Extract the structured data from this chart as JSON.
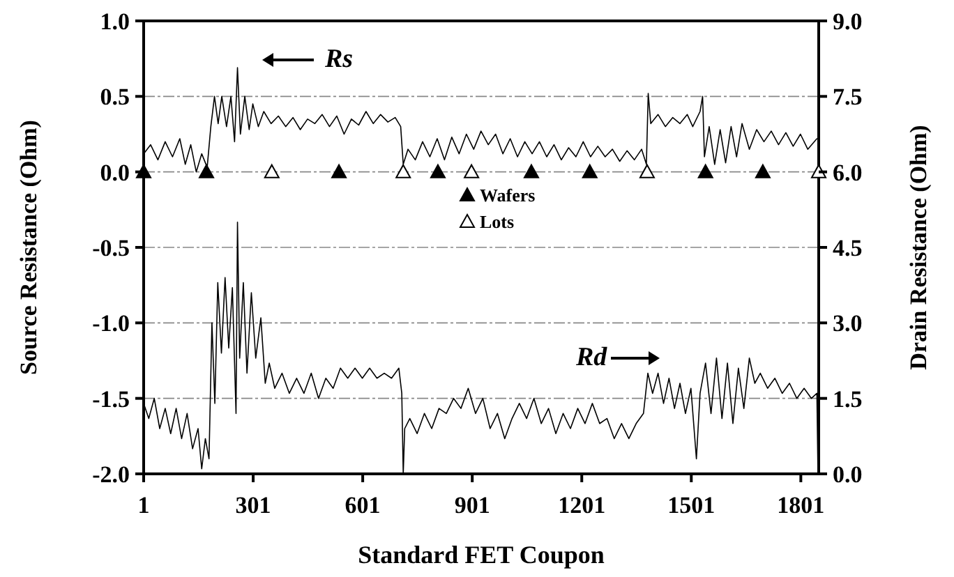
{
  "chart_data": {
    "type": "line",
    "xlabel": "Standard FET Coupon",
    "ylabel": "Source Resistance (Ohm)",
    "y2label": "Drain Resistance (Ohm)",
    "xlim": [
      1,
      1850
    ],
    "xticks": [
      1,
      301,
      601,
      901,
      1201,
      1501,
      1801
    ],
    "ylim": [
      -2,
      1
    ],
    "yticks": [
      {
        "value": -2,
        "label": "-2.0"
      },
      {
        "value": -1.5,
        "label": "-1.5"
      },
      {
        "value": -1,
        "label": "-1.0"
      },
      {
        "value": -0.5,
        "label": "-0.5"
      },
      {
        "value": 0,
        "label": "0.0"
      },
      {
        "value": 0.5,
        "label": "0.5"
      },
      {
        "value": 1,
        "label": "1.0"
      }
    ],
    "y2lim": [
      0,
      9
    ],
    "y2ticks": [
      {
        "value": 0,
        "label": "0.0"
      },
      {
        "value": 1.5,
        "label": "1.5"
      },
      {
        "value": 3,
        "label": "3.0"
      },
      {
        "value": 4.5,
        "label": "4.5"
      },
      {
        "value": 6,
        "label": "6.0"
      },
      {
        "value": 7.5,
        "label": "7.5"
      },
      {
        "value": 9,
        "label": "9.0"
      }
    ],
    "grid": "y",
    "legend": "center",
    "line_style": "solid",
    "series": [
      {
        "name": "Rs",
        "color": "#000000",
        "marker": "none",
        "x": [
          1,
          20,
          40,
          60,
          80,
          100,
          115,
          130,
          145,
          160,
          175,
          185,
          195,
          205,
          215,
          228,
          240,
          250,
          258,
          266,
          278,
          290,
          300,
          315,
          330,
          350,
          370,
          390,
          410,
          430,
          450,
          470,
          490,
          510,
          530,
          550,
          570,
          590,
          610,
          630,
          650,
          670,
          690,
          705,
          712,
          725,
          745,
          765,
          785,
          805,
          825,
          845,
          865,
          885,
          905,
          925,
          945,
          965,
          985,
          1005,
          1025,
          1045,
          1065,
          1085,
          1105,
          1125,
          1145,
          1165,
          1185,
          1205,
          1225,
          1245,
          1265,
          1285,
          1305,
          1325,
          1345,
          1365,
          1378,
          1383,
          1390,
          1410,
          1430,
          1450,
          1470,
          1490,
          1505,
          1525,
          1532,
          1537,
          1550,
          1565,
          1580,
          1595,
          1610,
          1625,
          1640,
          1660,
          1680,
          1700,
          1720,
          1740,
          1760,
          1780,
          1800,
          1820,
          1845
        ],
        "values": [
          0.12,
          0.18,
          0.08,
          0.2,
          0.1,
          0.22,
          0.05,
          0.18,
          0.0,
          0.12,
          0.03,
          0.3,
          0.5,
          0.32,
          0.5,
          0.3,
          0.5,
          0.2,
          0.69,
          0.25,
          0.5,
          0.28,
          0.45,
          0.3,
          0.4,
          0.32,
          0.37,
          0.3,
          0.36,
          0.28,
          0.35,
          0.32,
          0.38,
          0.3,
          0.37,
          0.25,
          0.35,
          0.31,
          0.4,
          0.32,
          0.38,
          0.33,
          0.36,
          0.3,
          0.05,
          0.15,
          0.08,
          0.2,
          0.1,
          0.22,
          0.08,
          0.23,
          0.12,
          0.25,
          0.15,
          0.27,
          0.18,
          0.25,
          0.12,
          0.22,
          0.1,
          0.2,
          0.12,
          0.2,
          0.1,
          0.18,
          0.08,
          0.16,
          0.1,
          0.2,
          0.1,
          0.17,
          0.1,
          0.15,
          0.07,
          0.14,
          0.08,
          0.15,
          0.05,
          0.52,
          0.32,
          0.38,
          0.3,
          0.36,
          0.32,
          0.38,
          0.3,
          0.4,
          0.5,
          0.1,
          0.3,
          0.05,
          0.28,
          0.06,
          0.3,
          0.1,
          0.32,
          0.15,
          0.28,
          0.2,
          0.27,
          0.18,
          0.26,
          0.17,
          0.25,
          0.15,
          0.22
        ]
      },
      {
        "name": "Rd",
        "axis": "y2",
        "color": "#000000",
        "marker": "none",
        "x": [
          1,
          15,
          30,
          45,
          60,
          75,
          90,
          105,
          120,
          135,
          150,
          160,
          170,
          180,
          188,
          196,
          204,
          214,
          224,
          234,
          244,
          254,
          258,
          264,
          274,
          284,
          296,
          308,
          322,
          334,
          345,
          360,
          380,
          400,
          420,
          440,
          460,
          480,
          500,
          520,
          540,
          560,
          580,
          600,
          620,
          640,
          660,
          680,
          700,
          708,
          712,
          716,
          730,
          750,
          770,
          790,
          810,
          830,
          850,
          870,
          890,
          910,
          930,
          950,
          970,
          990,
          1010,
          1030,
          1050,
          1070,
          1090,
          1110,
          1130,
          1150,
          1170,
          1190,
          1210,
          1230,
          1250,
          1270,
          1290,
          1310,
          1330,
          1350,
          1370,
          1382,
          1395,
          1410,
          1425,
          1440,
          1455,
          1470,
          1485,
          1500,
          1515,
          1525,
          1540,
          1555,
          1570,
          1585,
          1600,
          1615,
          1630,
          1645,
          1660,
          1675,
          1690,
          1710,
          1730,
          1750,
          1770,
          1790,
          1810,
          1830,
          1845,
          1848
        ],
        "values": [
          1.4,
          1.1,
          1.5,
          0.9,
          1.3,
          0.8,
          1.3,
          0.7,
          1.2,
          0.5,
          0.9,
          0.1,
          0.7,
          0.3,
          3.0,
          1.4,
          3.8,
          2.4,
          3.9,
          2.5,
          3.7,
          1.2,
          5.0,
          2.3,
          3.8,
          2.0,
          3.6,
          2.3,
          3.1,
          1.8,
          2.2,
          1.7,
          2.0,
          1.6,
          1.9,
          1.6,
          2.0,
          1.5,
          1.9,
          1.7,
          2.1,
          1.9,
          2.1,
          1.9,
          2.1,
          1.9,
          2.0,
          1.9,
          2.1,
          1.6,
          0.0,
          0.9,
          1.1,
          0.8,
          1.2,
          0.9,
          1.3,
          1.2,
          1.5,
          1.3,
          1.7,
          1.2,
          1.5,
          0.9,
          1.2,
          0.7,
          1.1,
          1.4,
          1.1,
          1.5,
          1.0,
          1.3,
          0.8,
          1.2,
          0.9,
          1.3,
          1.0,
          1.4,
          1.0,
          1.1,
          0.7,
          1.0,
          0.7,
          1.0,
          1.2,
          2.0,
          1.6,
          2.0,
          1.4,
          1.9,
          1.3,
          1.8,
          1.2,
          1.7,
          0.3,
          1.6,
          2.2,
          1.2,
          2.3,
          1.1,
          2.2,
          1.0,
          2.1,
          1.3,
          2.3,
          1.8,
          2.0,
          1.7,
          1.9,
          1.6,
          1.8,
          1.5,
          1.7,
          1.5,
          1.6,
          0.0
        ]
      },
      {
        "name": "Wafers",
        "type": "scatter",
        "color": "#000000",
        "marker": "triangle",
        "x": [
          1,
          173,
          536,
          807,
          1063,
          1223,
          1540,
          1697
        ],
        "values": [
          0,
          0,
          0,
          0,
          0,
          0,
          0,
          0
        ]
      },
      {
        "name": "Lots",
        "type": "scatter",
        "color": "#ffffff",
        "marker": "triangle",
        "x": [
          352,
          712,
          899,
          1380,
          1850
        ],
        "values": [
          0,
          0,
          0,
          0,
          0
        ]
      }
    ]
  }
}
